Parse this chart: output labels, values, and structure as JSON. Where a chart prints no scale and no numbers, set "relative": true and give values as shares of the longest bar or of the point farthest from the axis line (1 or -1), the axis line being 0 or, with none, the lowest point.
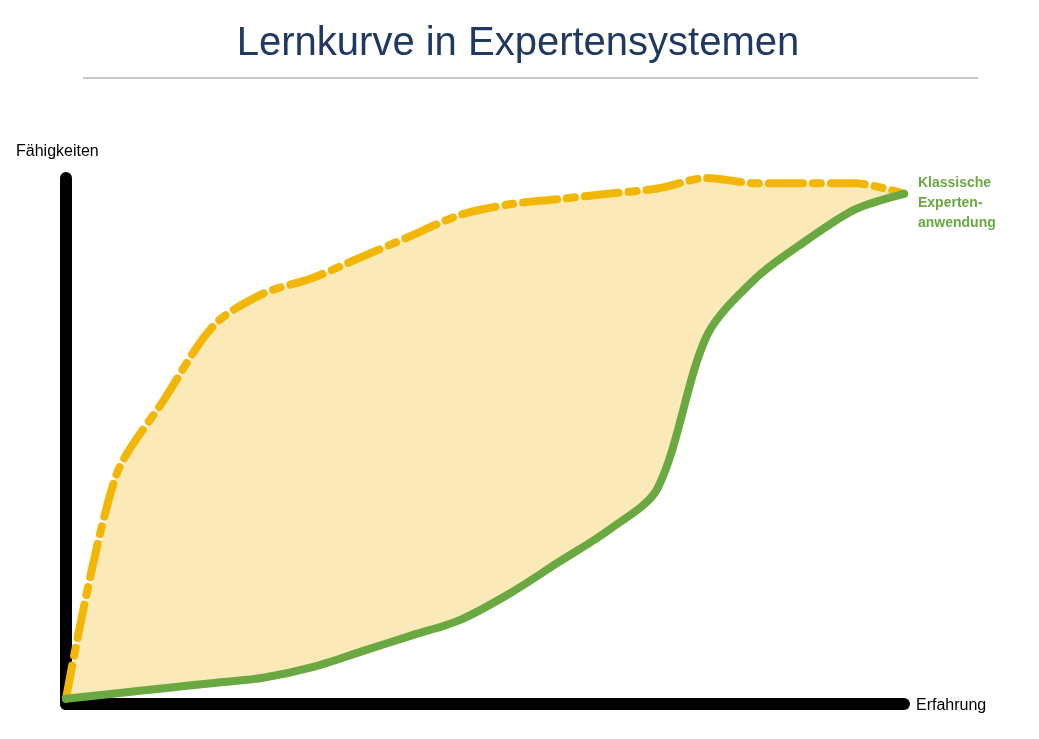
{
  "chart_data": {
    "type": "line",
    "title": "Lernkurve in Expertensystemen",
    "xlabel": "Erfahrung",
    "ylabel": "Fähigkeiten",
    "relative": true,
    "legend": false,
    "grid": false,
    "marker": "none",
    "categories": [
      null,
      null,
      null,
      null,
      null,
      null,
      null,
      null,
      null,
      null,
      null,
      null,
      null,
      null,
      null,
      null,
      null,
      null
    ],
    "series": [
      {
        "color": "#f2b705",
        "line_style": "dashed",
        "values": [
          0.01,
          0.43,
          0.58,
          0.72,
          0.78,
          0.81,
          0.85,
          0.89,
          0.93,
          0.95,
          0.96,
          0.97,
          0.98,
          1.0,
          0.99,
          0.99,
          0.99,
          0.97
        ],
        "lower": [
          0.01,
          0.02,
          0.03,
          0.04,
          0.05,
          0.07,
          0.1,
          0.13,
          0.16,
          0.21,
          0.27,
          0.33,
          0.41,
          0.7,
          0.81,
          0.88,
          0.94,
          0.97
        ],
        "upper": [
          0.01,
          0.43,
          0.58,
          0.72,
          0.78,
          0.81,
          0.85,
          0.89,
          0.93,
          0.95,
          0.96,
          0.97,
          0.98,
          1.0,
          0.99,
          0.99,
          0.99,
          0.97
        ]
      },
      {
        "name": "Klassische\nExperten-\nanwendung",
        "color": "#6aa842",
        "line_style": "solid",
        "values": [
          0.01,
          0.02,
          0.03,
          0.04,
          0.05,
          0.07,
          0.1,
          0.13,
          0.16,
          0.21,
          0.27,
          0.33,
          0.41,
          0.7,
          0.81,
          0.88,
          0.94,
          0.97
        ]
      }
    ]
  }
}
